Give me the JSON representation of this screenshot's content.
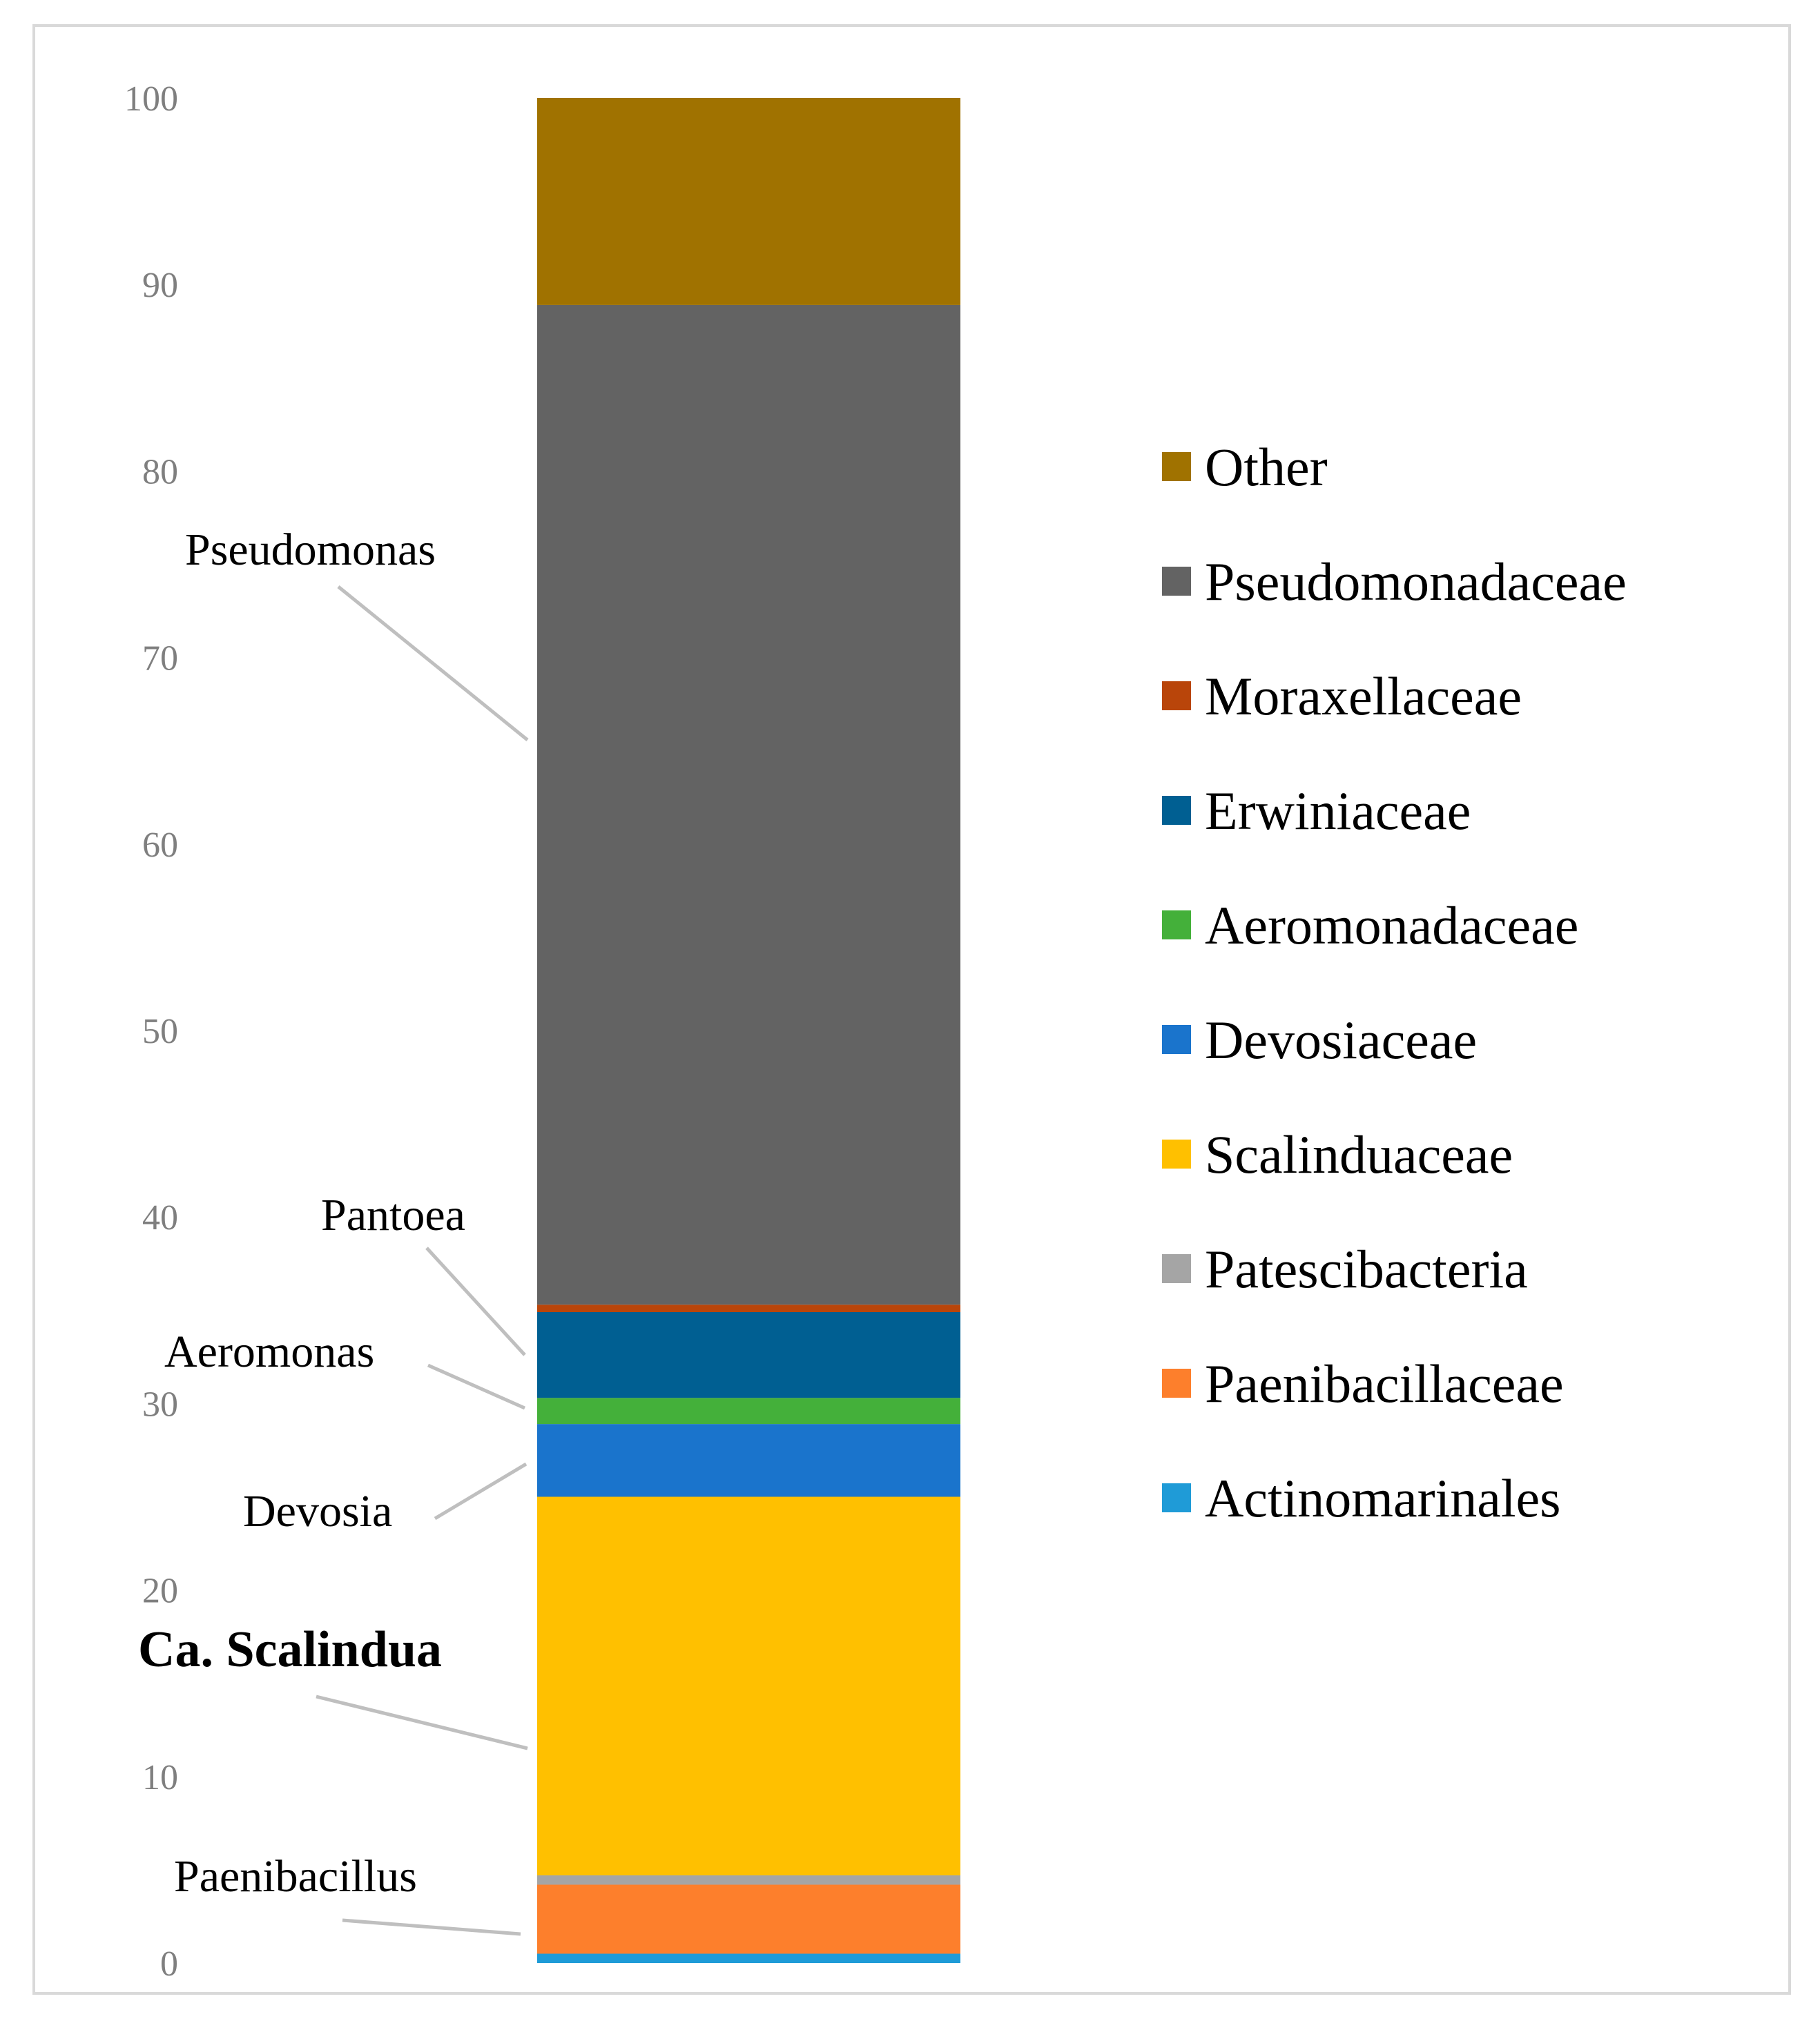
{
  "chart_data": {
    "type": "bar",
    "stacked": true,
    "title": "",
    "xlabel": "",
    "ylabel": "",
    "ylim": [
      0,
      100
    ],
    "yticks": [
      0,
      10,
      20,
      30,
      40,
      50,
      60,
      70,
      80,
      90,
      100
    ],
    "grid": false,
    "legend_position": "right",
    "series": [
      {
        "name": "Actinomarinales",
        "value": 0.5,
        "color": "#1f9bd7"
      },
      {
        "name": "Paenibacillaceae",
        "value": 3.7,
        "color": "#fd7f2c"
      },
      {
        "name": "Patescibacteria",
        "value": 0.5,
        "color": "#a5a5a5"
      },
      {
        "name": "Scalinduaceae",
        "value": 20.3,
        "color": "#ffc000"
      },
      {
        "name": "Devosiaceae",
        "value": 3.9,
        "color": "#1a74cc"
      },
      {
        "name": "Aeromonadaceae",
        "value": 1.4,
        "color": "#44b03a"
      },
      {
        "name": "Erwiniaceae",
        "value": 4.6,
        "color": "#005f92"
      },
      {
        "name": "Moraxellaceae",
        "value": 0.4,
        "color": "#b9450a"
      },
      {
        "name": "Pseudomonadaceae",
        "value": 53.6,
        "color": "#636363"
      },
      {
        "name": "Other",
        "value": 11.1,
        "color": "#a07200"
      }
    ],
    "legend_order": [
      "Other",
      "Pseudomonadaceae",
      "Moraxellaceae",
      "Erwiniaceae",
      "Aeromonadaceae",
      "Devosiaceae",
      "Scalinduaceae",
      "Patescibacteria",
      "Paenibacillaceae",
      "Actinomarinales"
    ],
    "annotations": [
      {
        "text": "Pseudomonas",
        "target_y": 65,
        "bold": false
      },
      {
        "text": "Pantoea",
        "target_y": 33,
        "bold": false
      },
      {
        "text": "Aeromonas",
        "target_y": 30.3,
        "bold": false
      },
      {
        "text": "Devosia",
        "target_y": 27,
        "bold": false
      },
      {
        "text": "Ca. Scalindua",
        "target_y": 11.5,
        "bold": true
      },
      {
        "text": "Paenibacillus",
        "target_y": 1.7,
        "bold": false
      }
    ]
  }
}
